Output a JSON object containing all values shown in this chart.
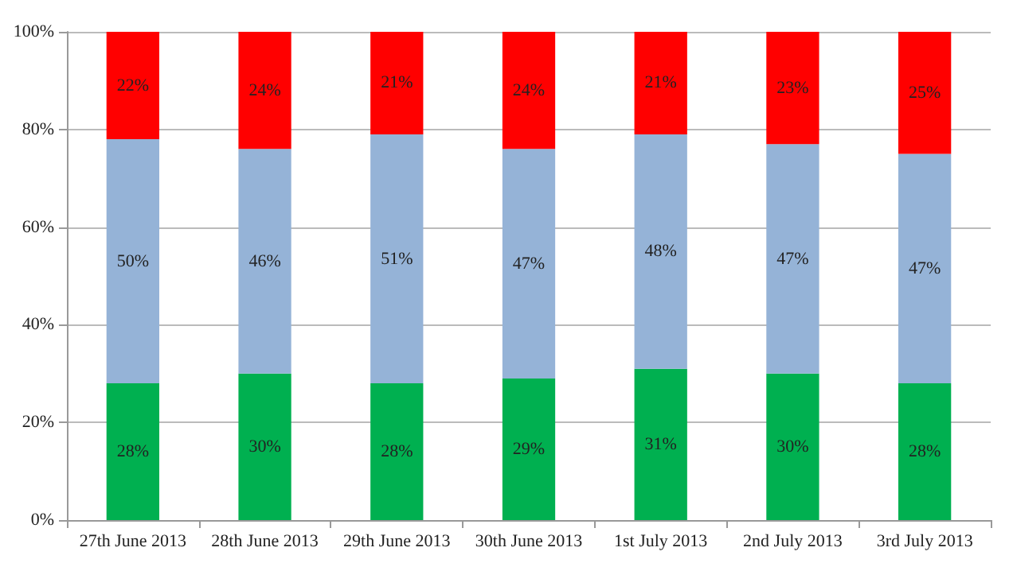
{
  "chart_data": {
    "type": "bar",
    "stacked": true,
    "categories": [
      "27th June 2013",
      "28th June 2013",
      "29th June 2013",
      "30th June 2013",
      "1st July 2013",
      "2nd July 2013",
      "3rd July 2013"
    ],
    "series": [
      {
        "color": "#00b050",
        "values": [
          28,
          30,
          28,
          29,
          31,
          30,
          28
        ],
        "value_labels": [
          "28%",
          "30%",
          "28%",
          "29%",
          "31%",
          "30%",
          "28%"
        ]
      },
      {
        "color": "#95b3d7",
        "values": [
          50,
          46,
          51,
          47,
          48,
          47,
          47
        ],
        "value_labels": [
          "50%",
          "46%",
          "51%",
          "47%",
          "48%",
          "47%",
          "47%"
        ]
      },
      {
        "color": "#ff0000",
        "values": [
          22,
          24,
          21,
          24,
          21,
          23,
          25
        ],
        "value_labels": [
          "22%",
          "24%",
          "21%",
          "24%",
          "21%",
          "23%",
          "25%"
        ]
      }
    ],
    "ylim": [
      0,
      100
    ],
    "yticks": [
      {
        "value": 0,
        "label": "0%"
      },
      {
        "value": 20,
        "label": "20%"
      },
      {
        "value": 40,
        "label": "40%"
      },
      {
        "value": 60,
        "label": "60%"
      },
      {
        "value": 80,
        "label": "80%"
      },
      {
        "value": 100,
        "label": "100%"
      }
    ],
    "grid": "y"
  }
}
